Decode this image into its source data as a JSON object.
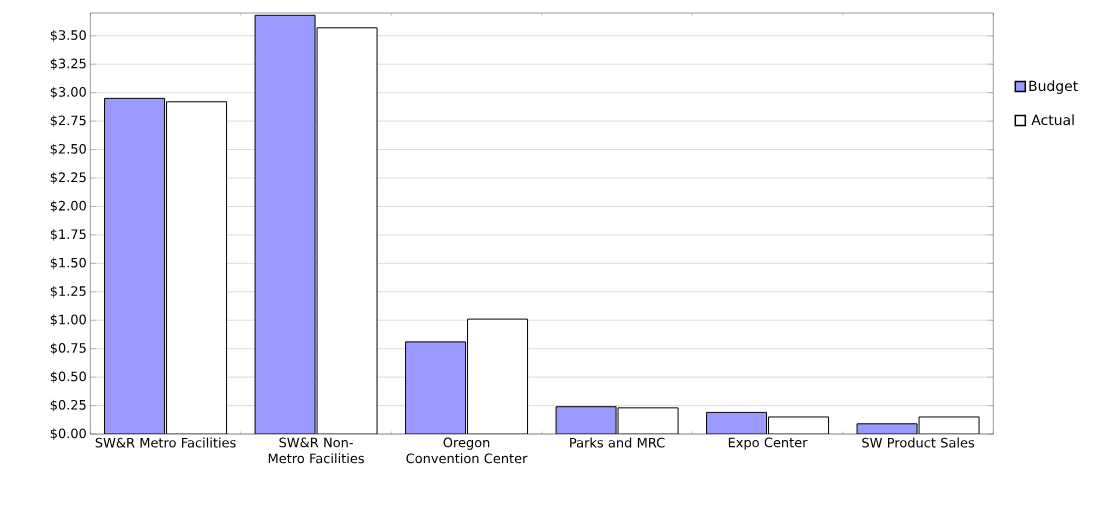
{
  "chart_data": {
    "type": "bar",
    "categories": [
      "SW&R Metro Facilities",
      "SW&R Non-Metro Facilities",
      "Oregon Convention Center",
      "Parks and MRC",
      "Expo Center",
      "SW Product Sales"
    ],
    "series": [
      {
        "name": "Budget",
        "color": "#9999ff",
        "values": [
          2.95,
          3.68,
          0.81,
          0.24,
          0.19,
          0.09
        ]
      },
      {
        "name": "Actual",
        "color": "#ffffff",
        "values": [
          2.92,
          3.57,
          1.01,
          0.23,
          0.15,
          0.15
        ]
      }
    ],
    "ylim": [
      0,
      3.7
    ],
    "yticks": [
      {
        "value": 0,
        "label": "$0.00"
      },
      {
        "value": 0.25,
        "label": "$0.25"
      },
      {
        "value": 0.5,
        "label": "$0.50"
      },
      {
        "value": 0.75,
        "label": "$0.75"
      },
      {
        "value": 1,
        "label": "$1.00"
      },
      {
        "value": 1.25,
        "label": "$1.25"
      },
      {
        "value": 1.5,
        "label": "$1.50"
      },
      {
        "value": 1.75,
        "label": "$1.75"
      },
      {
        "value": 2,
        "label": "$2.00"
      },
      {
        "value": 2.25,
        "label": "$2.25"
      },
      {
        "value": 2.5,
        "label": "$2.50"
      },
      {
        "value": 2.75,
        "label": "$2.75"
      },
      {
        "value": 3,
        "label": "$3.00"
      },
      {
        "value": 3.25,
        "label": "$3.25"
      },
      {
        "value": 3.5,
        "label": "$3.50"
      }
    ],
    "grid": "y",
    "legend": "right"
  }
}
